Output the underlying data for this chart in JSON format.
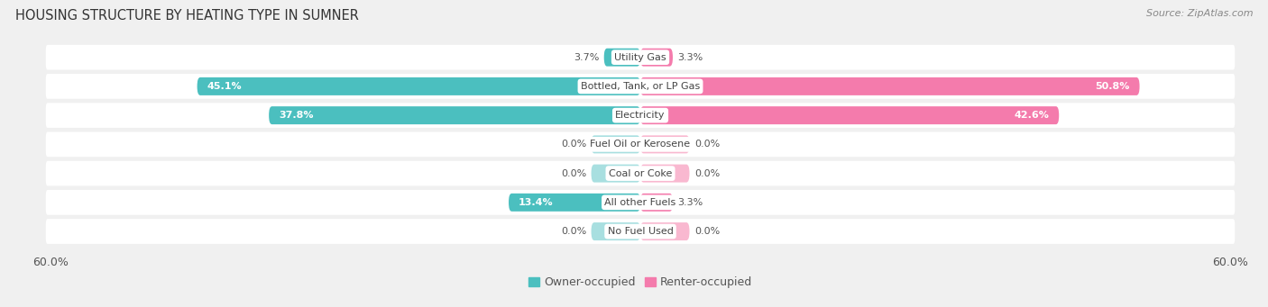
{
  "title": "Housing Structure by Heating Type in Sumner",
  "source": "Source: ZipAtlas.com",
  "categories": [
    "Utility Gas",
    "Bottled, Tank, or LP Gas",
    "Electricity",
    "Fuel Oil or Kerosene",
    "Coal or Coke",
    "All other Fuels",
    "No Fuel Used"
  ],
  "owner_values": [
    3.7,
    45.1,
    37.8,
    0.0,
    0.0,
    13.4,
    0.0
  ],
  "renter_values": [
    3.3,
    50.8,
    42.6,
    0.0,
    0.0,
    3.3,
    0.0
  ],
  "owner_color": "#4BBFBF",
  "renter_color": "#F47BAC",
  "owner_color_light": "#A8DFE0",
  "renter_color_light": "#F9B8D0",
  "owner_label": "Owner-occupied",
  "renter_label": "Renter-occupied",
  "xlim": 60.0,
  "stub_value": 5.0,
  "background_color": "#f0f0f0",
  "row_bg_color": "#e8e8e8",
  "title_fontsize": 10.5,
  "source_fontsize": 8,
  "label_fontsize": 8,
  "value_fontsize": 8,
  "tick_fontsize": 9,
  "legend_fontsize": 9
}
